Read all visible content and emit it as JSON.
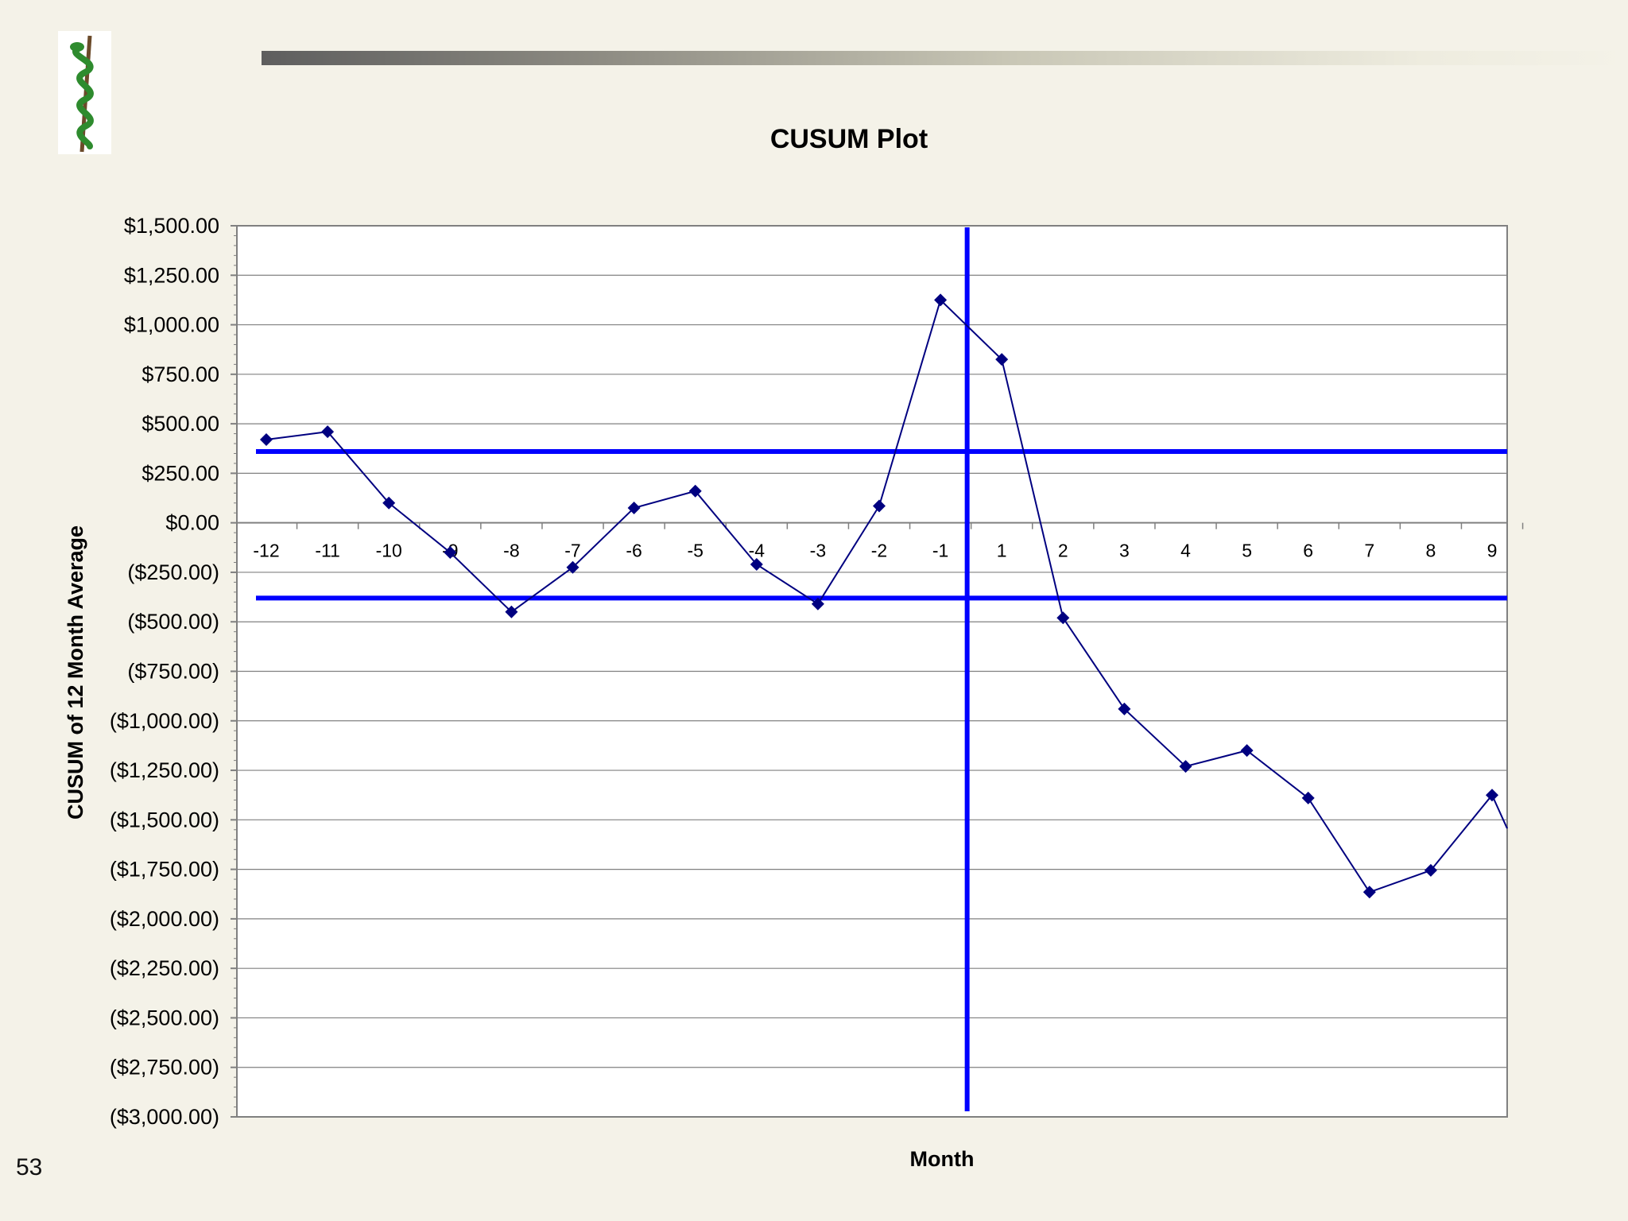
{
  "slide": {
    "number": "53"
  },
  "logo": {
    "icon": "rod-of-asclepius-icon"
  },
  "chart_data": {
    "type": "line",
    "title": "CUSUM Plot",
    "xlabel": "Month",
    "ylabel": "CUSUM of 12 Month Average",
    "ylim": [
      -3000,
      1500
    ],
    "ytick_step": 250,
    "y_tick_labels": [
      "$1,500.00",
      "$1,250.00",
      "$1,000.00",
      "$750.00",
      "$500.00",
      "$250.00",
      "$0.00",
      "($250.00)",
      "($500.00)",
      "($750.00)",
      "($1,000.00)",
      "($1,250.00)",
      "($1,500.00)",
      "($1,750.00)",
      "($2,000.00)",
      "($2,250.00)",
      "($2,500.00)",
      "($2,750.00)",
      "($3,000.00)"
    ],
    "categories": [
      "-12",
      "-11",
      "-10",
      "-9",
      "-8",
      "-7",
      "-6",
      "-5",
      "-4",
      "-3",
      "-2",
      "-1",
      "1",
      "2",
      "3",
      "4",
      "5",
      "6",
      "7",
      "8",
      "9"
    ],
    "series": [
      {
        "values": [
          420,
          460,
          100,
          -150,
          -450,
          -225,
          75,
          160,
          -210,
          -410,
          85,
          1125,
          825,
          -480,
          -940,
          -1230,
          -1150,
          -1390,
          -1865,
          -1755,
          -1375
        ]
      }
    ],
    "reference_lines": {
      "upper_limit": 360,
      "lower_limit": -380,
      "vertical_between": [
        "-1",
        "1"
      ]
    },
    "grid": true,
    "legend": "none",
    "colors": {
      "series": "#000080",
      "reference": "#0000ff",
      "grid": "#808080"
    }
  }
}
